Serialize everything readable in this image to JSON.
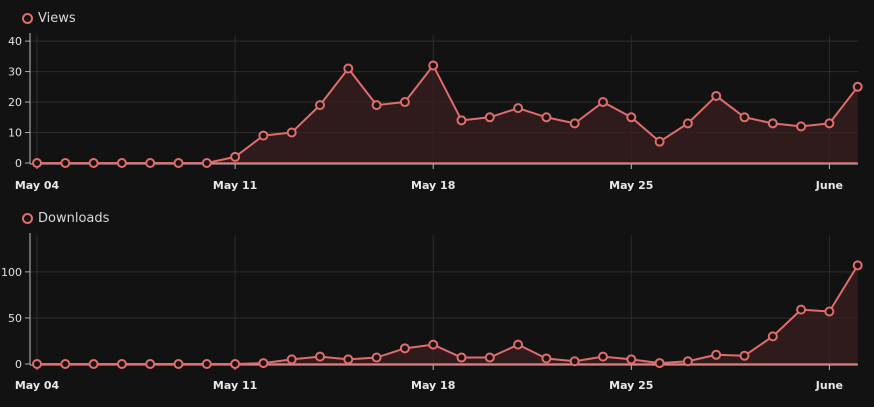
{
  "chart_data": [
    {
      "type": "area",
      "legend": "Views",
      "color": "#e06c6c",
      "x_start": "May 04",
      "x_tick_labels": [
        "May 04",
        "May 11",
        "May 18",
        "May 25",
        "June"
      ],
      "y_ticks": [
        0,
        10,
        20,
        30,
        40
      ],
      "ylim": [
        0,
        42
      ],
      "grid": true,
      "values": [
        0,
        0,
        0,
        0,
        0,
        0,
        0,
        2,
        9,
        10,
        19,
        31,
        19,
        20,
        32,
        14,
        15,
        18,
        15,
        13,
        20,
        15,
        7,
        13,
        22,
        15,
        13,
        12,
        13,
        25
      ]
    },
    {
      "type": "area",
      "legend": "Downloads",
      "color": "#e06c6c",
      "x_start": "May 04",
      "x_tick_labels": [
        "May 04",
        "May 11",
        "May 18",
        "May 25",
        "June"
      ],
      "y_ticks": [
        0,
        50,
        100
      ],
      "ylim": [
        0,
        140
      ],
      "grid": true,
      "values": [
        0,
        0,
        0,
        0,
        0,
        0,
        0,
        0,
        1,
        5,
        8,
        5,
        7,
        17,
        21,
        7,
        7,
        21,
        6,
        3,
        8,
        5,
        1,
        3,
        10,
        9,
        30,
        59,
        57,
        107
      ]
    }
  ]
}
